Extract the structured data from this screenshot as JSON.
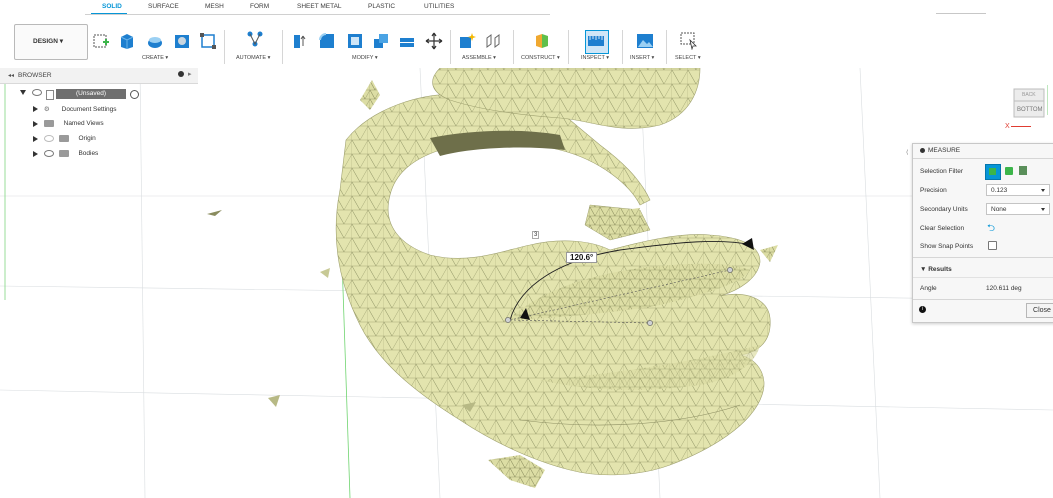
{
  "workspace": {
    "button_label": "DESIGN ▾"
  },
  "tabs": [
    "SOLID",
    "SURFACE",
    "MESH",
    "FORM",
    "SHEET METAL",
    "PLASTIC",
    "UTILITIES"
  ],
  "groups": {
    "create": "CREATE ▾",
    "automate": "AUTOMATE ▾",
    "modify": "MODIFY ▾",
    "assemble": "ASSEMBLE ▾",
    "construct": "CONSTRUCT ▾",
    "inspect": "INSPECT ▾",
    "insert": "INSERT ▾",
    "select": "SELECT ▾"
  },
  "browser": {
    "title": "BROWSER",
    "root": "(Unsaved)",
    "items": [
      "Document Settings",
      "Named Views",
      "Origin",
      "Bodies"
    ]
  },
  "viewcube": {
    "back": "BACK",
    "bottom": "BOTTOM",
    "axis_x": "X"
  },
  "canvas": {
    "angle_label": "120.6°",
    "point_label": "3"
  },
  "measure": {
    "title": "MEASURE",
    "selection_filter_label": "Selection Filter",
    "precision_label": "Precision",
    "precision_value": "0.123",
    "secondary_units_label": "Secondary Units",
    "secondary_units_value": "None",
    "clear_selection_label": "Clear Selection",
    "show_snap_points_label": "Show Snap Points",
    "results_title": "▼ Results",
    "angle_label": "Angle",
    "angle_value": "120.611 deg",
    "close_label": "Close",
    "colors": {
      "accent": "#0696d7",
      "green": "#3cb54a"
    }
  },
  "colors": {
    "mesh_fill": "#e4e5b0",
    "mesh_edge": "#7c7e55",
    "accent": "#0696d7"
  }
}
